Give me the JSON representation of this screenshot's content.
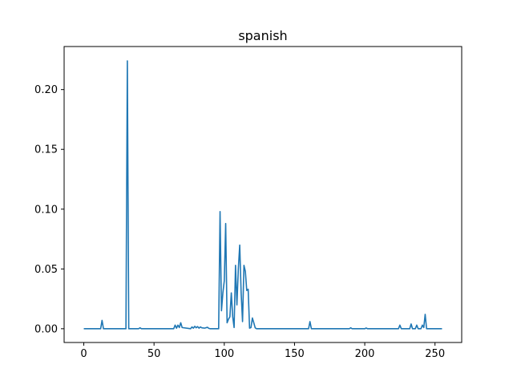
{
  "chart_data": {
    "type": "line",
    "title": "spanish",
    "xlabel": "",
    "ylabel": "",
    "xlim": [
      -14,
      269
    ],
    "ylim": [
      -0.0115,
      0.236
    ],
    "xticks": [
      0,
      50,
      100,
      150,
      200,
      250
    ],
    "yticks": [
      0.0,
      0.05,
      0.1,
      0.15,
      0.2
    ],
    "ytick_labels": [
      "0.00",
      "0.05",
      "0.10",
      "0.15",
      "0.20"
    ],
    "grid": false,
    "color": "#1f77b4",
    "series": [
      {
        "x": [
          0,
          12,
          13,
          14,
          30,
          31,
          32,
          33,
          39,
          40,
          41,
          64,
          65,
          66,
          67,
          68,
          69,
          70,
          76,
          77,
          78,
          79,
          80,
          81,
          82,
          83,
          84,
          86,
          88,
          89,
          90,
          96,
          97,
          98,
          99,
          100,
          101,
          102,
          103,
          104,
          105,
          106,
          107,
          108,
          109,
          110,
          111,
          112,
          113,
          114,
          115,
          116,
          117,
          118,
          119,
          120,
          121,
          122,
          123,
          160,
          161,
          162,
          189,
          190,
          191,
          200,
          201,
          202,
          224,
          225,
          226,
          232,
          233,
          234,
          236,
          237,
          238,
          240,
          241,
          242,
          243,
          244,
          255
        ],
        "y": [
          0,
          0,
          0.007,
          0,
          0,
          0.224,
          0,
          0,
          0,
          0.0008,
          0,
          0,
          0.003,
          0.0005,
          0.003,
          0.001,
          0.005,
          0.001,
          0,
          0.0015,
          0.0005,
          0.002,
          0.0008,
          0.0018,
          0.0005,
          0.0015,
          0.0008,
          0.0005,
          0.0012,
          0.0003,
          0,
          0,
          0.098,
          0.015,
          0.03,
          0.04,
          0.088,
          0.005,
          0.008,
          0.01,
          0.03,
          0.01,
          0.001,
          0.053,
          0.02,
          0.05,
          0.07,
          0.03,
          0.006,
          0.053,
          0.048,
          0.032,
          0.033,
          0.0005,
          0.001,
          0.009,
          0.005,
          0.0008,
          0,
          0,
          0.006,
          0,
          0,
          0.0008,
          0,
          0,
          0.0006,
          0,
          0,
          0.003,
          0,
          0,
          0.004,
          0,
          0,
          0.003,
          0,
          0,
          0.003,
          0.001,
          0.012,
          0,
          0
        ]
      }
    ]
  }
}
